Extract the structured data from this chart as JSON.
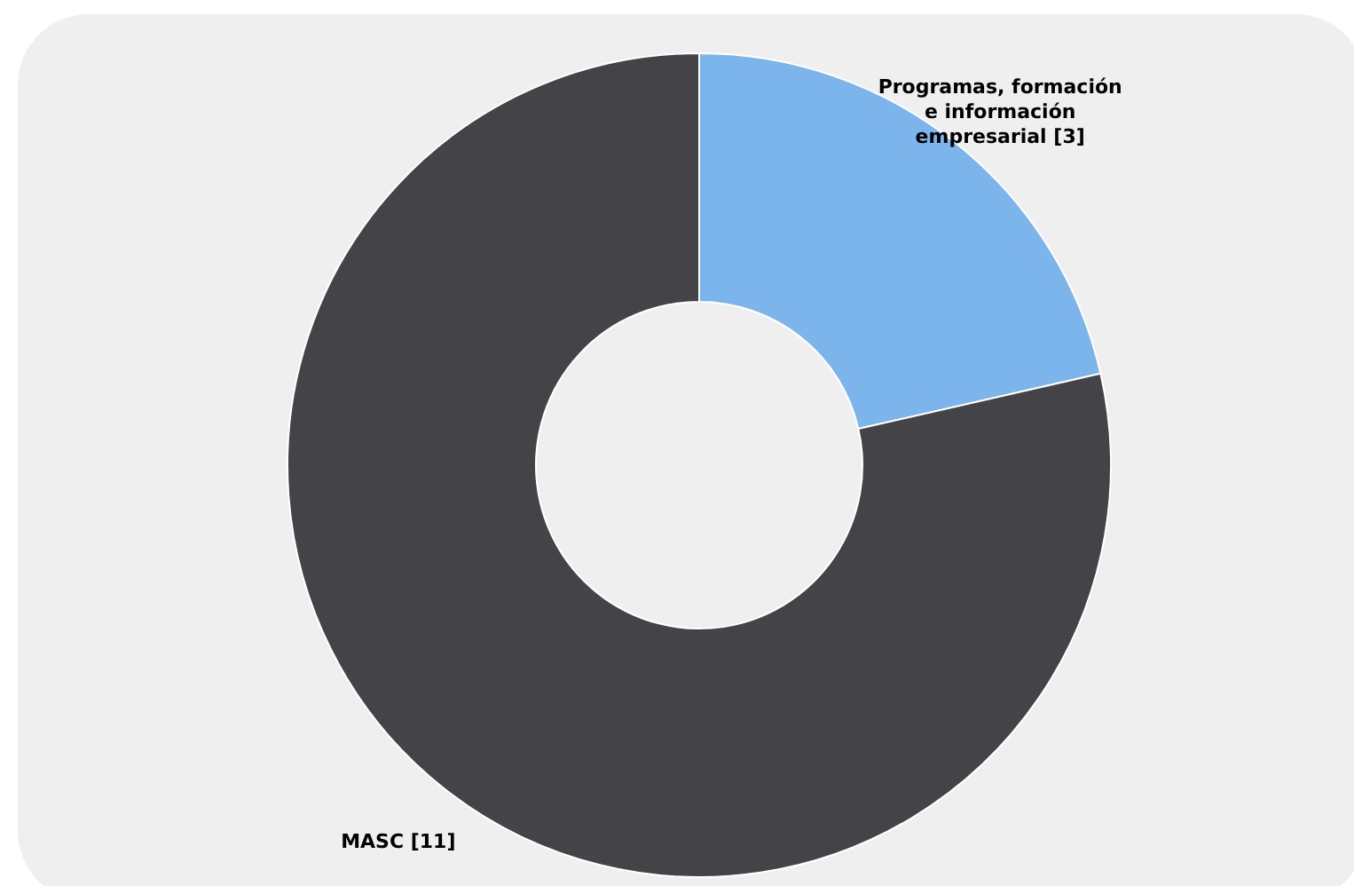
{
  "chart_data": {
    "type": "donut",
    "categories": [
      "Programas, formación e información empresarial [3]",
      "MASC [11]"
    ],
    "values": [
      3,
      11
    ],
    "colors": [
      "#7cb5ec",
      "#434348"
    ]
  }
}
